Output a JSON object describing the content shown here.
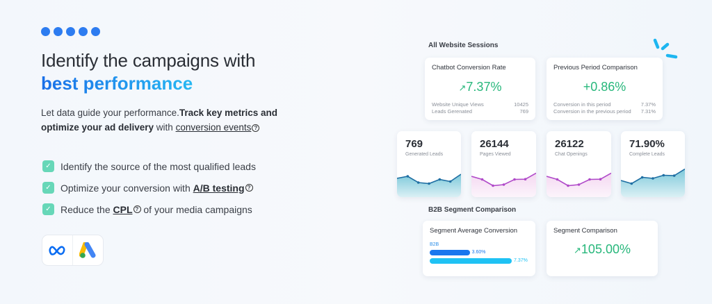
{
  "hero": {
    "title_line1": "Identify the campaigns with",
    "title_line2": "best performance",
    "para_plain1": "Let data guide your performance.",
    "para_bold1": "Track key metrics and optimize your ad delivery",
    "para_plain2": " with ",
    "para_link": "conversion events",
    "help_glyph": "?"
  },
  "checklist": [
    {
      "pre": "Identify the source of the most qualified leads",
      "link": "",
      "post": ""
    },
    {
      "pre": "Optimize your conversion with ",
      "link": "A/B testing",
      "post": ""
    },
    {
      "pre": "Reduce the ",
      "link": "CPL",
      "post": " of your media campaigns"
    }
  ],
  "logos": [
    "meta-logo",
    "google-ads-logo"
  ],
  "dashboard": {
    "section1": "All Website Sessions",
    "chatbot": {
      "title": "Chatbot Conversion Rate",
      "value": "7.37%",
      "rows": [
        {
          "label": "Website Unique Views",
          "value": "10425"
        },
        {
          "label": "Leads Gerenated",
          "value": "769"
        }
      ]
    },
    "previous": {
      "title": "Previous Period Comparison",
      "value": "+0.86%",
      "rows": [
        {
          "label": "Conversion in this period",
          "value": "7.37%"
        },
        {
          "label": "Conversion in the previous period",
          "value": "7.31%"
        }
      ]
    },
    "metrics": [
      {
        "value": "769",
        "label": "Generated Leads",
        "color": "#1f6fa3",
        "fill": "#6fc3d6",
        "spark": [
          5,
          6,
          3,
          2.5,
          4.5,
          3.5,
          7
        ]
      },
      {
        "value": "26144",
        "label": "Pages Viewed",
        "color": "#b04ac9",
        "fill": "#f3d4f0",
        "spark": [
          6,
          4.5,
          1.5,
          2,
          4.5,
          4.6,
          7.5
        ]
      },
      {
        "value": "26122",
        "label": "Chat Openings",
        "color": "#b04ac9",
        "fill": "#f3d4f0",
        "spark": [
          6,
          4.5,
          1.5,
          2,
          4.5,
          4.6,
          7.5
        ]
      },
      {
        "value": "71.90%",
        "label": "Complete Leads",
        "color": "#1f6fa3",
        "fill": "#6fc3d6",
        "spark": [
          4,
          2.5,
          5.5,
          5,
          6.5,
          6.3,
          9.5
        ]
      }
    ],
    "section2": "B2B Segment Comparison",
    "segment_avg": {
      "title": "Segment Average Conversion",
      "legend": "B2B",
      "bars": [
        {
          "value": 3.6,
          "label": "3.60%",
          "color": "#1877ee"
        },
        {
          "value": 7.37,
          "label": "7.37%",
          "color": "#1fc2f4"
        }
      ]
    },
    "segment_cmp": {
      "title": "Segment Comparison",
      "value": "105.00%"
    },
    "colors": {
      "accent": "#2d7cf0",
      "positive": "#27b77b"
    }
  }
}
